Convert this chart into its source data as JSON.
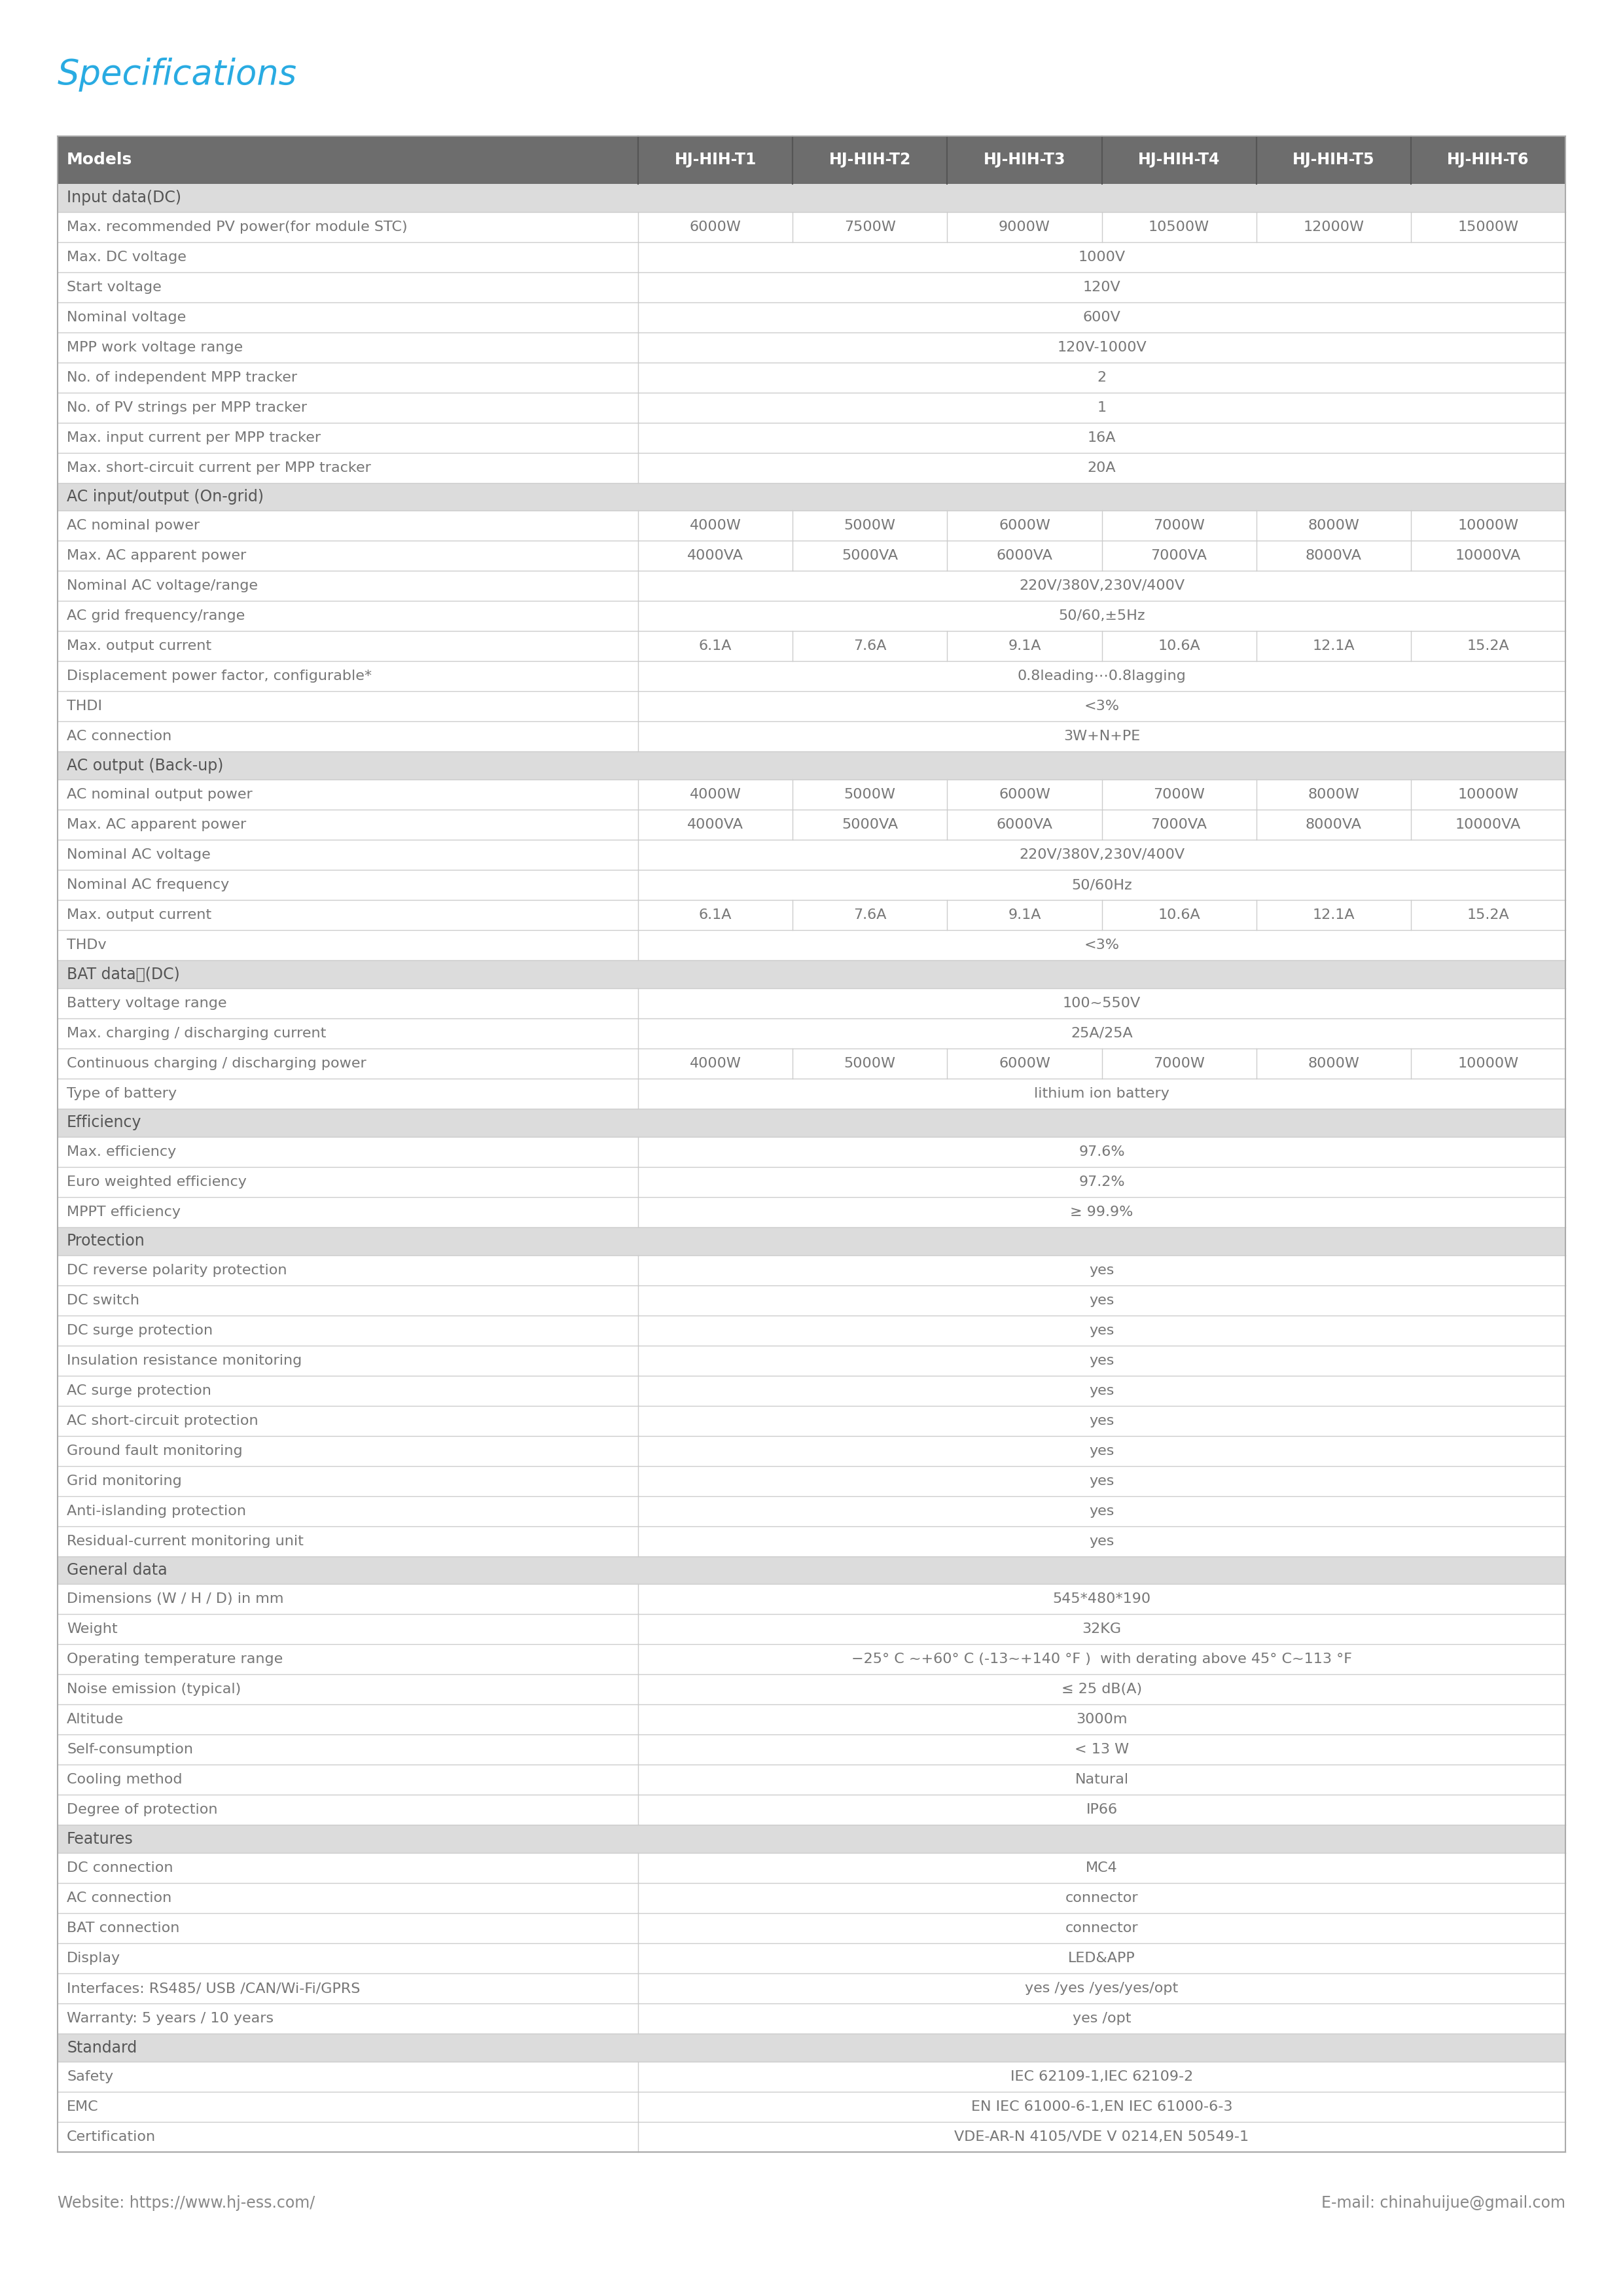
{
  "title": "Specifications",
  "title_color": "#29ABE2",
  "header_bg": "#6D6D6D",
  "header_text_color": "#FFFFFF",
  "section_bg": "#DCDCDC",
  "section_text_color": "#555555",
  "row_text_color": "#777777",
  "value_text_color": "#777777",
  "line_color": "#CCCCCC",
  "col_headers": [
    "Models",
    "HJ-HIH-T1",
    "HJ-HIH-T2",
    "HJ-HIH-T3",
    "HJ-HIH-T4",
    "HJ-HIH-T5",
    "HJ-HIH-T6"
  ],
  "rows": [
    {
      "type": "section",
      "label": "Input data(DC)"
    },
    {
      "type": "data",
      "label": "Max. recommended PV power(for module STC)",
      "values": [
        "6000W",
        "7500W",
        "9000W",
        "10500W",
        "12000W",
        "15000W"
      ],
      "span": false
    },
    {
      "type": "data",
      "label": "Max. DC voltage",
      "values": [
        "1000V",
        "",
        "",
        "",
        "",
        ""
      ],
      "span": true
    },
    {
      "type": "data",
      "label": "Start voltage",
      "values": [
        "120V",
        "",
        "",
        "",
        "",
        ""
      ],
      "span": true
    },
    {
      "type": "data",
      "label": "Nominal voltage",
      "values": [
        "600V",
        "",
        "",
        "",
        "",
        ""
      ],
      "span": true
    },
    {
      "type": "data",
      "label": "MPP work voltage range",
      "values": [
        "120V-1000V",
        "",
        "",
        "",
        "",
        ""
      ],
      "span": true
    },
    {
      "type": "data",
      "label": "No. of independent MPP tracker",
      "values": [
        "2",
        "",
        "",
        "",
        "",
        ""
      ],
      "span": true
    },
    {
      "type": "data",
      "label": "No. of PV strings per MPP tracker",
      "values": [
        "1",
        "",
        "",
        "",
        "",
        ""
      ],
      "span": true
    },
    {
      "type": "data",
      "label": "Max. input current per MPP tracker",
      "values": [
        "16A",
        "",
        "",
        "",
        "",
        ""
      ],
      "span": true
    },
    {
      "type": "data",
      "label": "Max. short-circuit current per MPP tracker",
      "values": [
        "20A",
        "",
        "",
        "",
        "",
        ""
      ],
      "span": true
    },
    {
      "type": "section",
      "label": "AC input/output (On-grid)"
    },
    {
      "type": "data",
      "label": "AC nominal power",
      "values": [
        "4000W",
        "5000W",
        "6000W",
        "7000W",
        "8000W",
        "10000W"
      ],
      "span": false
    },
    {
      "type": "data",
      "label": "Max. AC apparent power",
      "values": [
        "4000VA",
        "5000VA",
        "6000VA",
        "7000VA",
        "8000VA",
        "10000VA"
      ],
      "span": false
    },
    {
      "type": "data",
      "label": "Nominal AC voltage/range",
      "values": [
        "220V/380V,230V/400V",
        "",
        "",
        "",
        "",
        ""
      ],
      "span": true
    },
    {
      "type": "data",
      "label": "AC grid frequency/range",
      "values": [
        "50/60,±5Hz",
        "",
        "",
        "",
        "",
        ""
      ],
      "span": true
    },
    {
      "type": "data",
      "label": "Max. output current",
      "values": [
        "6.1A",
        "7.6A",
        "9.1A",
        "10.6A",
        "12.1A",
        "15.2A"
      ],
      "span": false
    },
    {
      "type": "data",
      "label": "Displacement power factor, configurable*",
      "values": [
        "0.8leading⋯0.8lagging",
        "",
        "",
        "",
        "",
        ""
      ],
      "span": true
    },
    {
      "type": "data",
      "label": "THDI",
      "values": [
        "<3%",
        "",
        "",
        "",
        "",
        ""
      ],
      "span": true
    },
    {
      "type": "data",
      "label": "AC connection",
      "values": [
        "3W+N+PE",
        "",
        "",
        "",
        "",
        ""
      ],
      "span": true
    },
    {
      "type": "section",
      "label": "AC output (Back-up)"
    },
    {
      "type": "data",
      "label": "AC nominal output power",
      "values": [
        "4000W",
        "5000W",
        "6000W",
        "7000W",
        "8000W",
        "10000W"
      ],
      "span": false
    },
    {
      "type": "data",
      "label": "Max. AC apparent power",
      "values": [
        "4000VA",
        "5000VA",
        "6000VA",
        "7000VA",
        "8000VA",
        "10000VA"
      ],
      "span": false
    },
    {
      "type": "data",
      "label": "Nominal AC voltage",
      "values": [
        "220V/380V,230V/400V",
        "",
        "",
        "",
        "",
        ""
      ],
      "span": true
    },
    {
      "type": "data",
      "label": "Nominal AC frequency",
      "values": [
        "50/60Hz",
        "",
        "",
        "",
        "",
        ""
      ],
      "span": true
    },
    {
      "type": "data",
      "label": "Max. output current",
      "values": [
        "6.1A",
        "7.6A",
        "9.1A",
        "10.6A",
        "12.1A",
        "15.2A"
      ],
      "span": false
    },
    {
      "type": "data",
      "label": "THDv",
      "values": [
        "<3%",
        "",
        "",
        "",
        "",
        ""
      ],
      "span": true
    },
    {
      "type": "section",
      "label": "BAT data　(DC)"
    },
    {
      "type": "data",
      "label": "Battery voltage range",
      "values": [
        "100~550V",
        "",
        "",
        "",
        "",
        ""
      ],
      "span": true
    },
    {
      "type": "data",
      "label": "Max. charging / discharging current",
      "values": [
        "25A/25A",
        "",
        "",
        "",
        "",
        ""
      ],
      "span": true
    },
    {
      "type": "data",
      "label": "Continuous charging / discharging power",
      "values": [
        "4000W",
        "5000W",
        "6000W",
        "7000W",
        "8000W",
        "10000W"
      ],
      "span": false
    },
    {
      "type": "data",
      "label": "Type of battery",
      "values": [
        "lithium ion battery",
        "",
        "",
        "",
        "",
        ""
      ],
      "span": true
    },
    {
      "type": "section",
      "label": "Efficiency"
    },
    {
      "type": "data",
      "label": "Max. efficiency",
      "values": [
        "97.6%",
        "",
        "",
        "",
        "",
        ""
      ],
      "span": true
    },
    {
      "type": "data",
      "label": "Euro weighted efficiency",
      "values": [
        "97.2%",
        "",
        "",
        "",
        "",
        ""
      ],
      "span": true
    },
    {
      "type": "data",
      "label": "MPPT efficiency",
      "values": [
        "≥ 99.9%",
        "",
        "",
        "",
        "",
        ""
      ],
      "span": true
    },
    {
      "type": "section",
      "label": "Protection"
    },
    {
      "type": "data",
      "label": "DC reverse polarity protection",
      "values": [
        "yes",
        "",
        "",
        "",
        "",
        ""
      ],
      "span": true
    },
    {
      "type": "data",
      "label": "DC switch",
      "values": [
        "yes",
        "",
        "",
        "",
        "",
        ""
      ],
      "span": true
    },
    {
      "type": "data",
      "label": "DC surge protection",
      "values": [
        "yes",
        "",
        "",
        "",
        "",
        ""
      ],
      "span": true
    },
    {
      "type": "data",
      "label": "Insulation resistance monitoring",
      "values": [
        "yes",
        "",
        "",
        "",
        "",
        ""
      ],
      "span": true
    },
    {
      "type": "data",
      "label": "AC surge protection",
      "values": [
        "yes",
        "",
        "",
        "",
        "",
        ""
      ],
      "span": true
    },
    {
      "type": "data",
      "label": "AC short-circuit protection",
      "values": [
        "yes",
        "",
        "",
        "",
        "",
        ""
      ],
      "span": true
    },
    {
      "type": "data",
      "label": "Ground fault monitoring",
      "values": [
        "yes",
        "",
        "",
        "",
        "",
        ""
      ],
      "span": true
    },
    {
      "type": "data",
      "label": "Grid monitoring",
      "values": [
        "yes",
        "",
        "",
        "",
        "",
        ""
      ],
      "span": true
    },
    {
      "type": "data",
      "label": "Anti-islanding protection",
      "values": [
        "yes",
        "",
        "",
        "",
        "",
        ""
      ],
      "span": true
    },
    {
      "type": "data",
      "label": "Residual-current monitoring unit",
      "values": [
        "yes",
        "",
        "",
        "",
        "",
        ""
      ],
      "span": true
    },
    {
      "type": "section",
      "label": "General data"
    },
    {
      "type": "data",
      "label": "Dimensions (W / H / D) in mm",
      "values": [
        "545*480*190",
        "",
        "",
        "",
        "",
        ""
      ],
      "span": true
    },
    {
      "type": "data",
      "label": "Weight",
      "values": [
        "32KG",
        "",
        "",
        "",
        "",
        ""
      ],
      "span": true
    },
    {
      "type": "data",
      "label": "Operating temperature range",
      "values": [
        "−25° C ~+60° C (-13~+140 °F )  with derating above 45° C~113 °F",
        "",
        "",
        "",
        "",
        ""
      ],
      "span": true
    },
    {
      "type": "data",
      "label": "Noise emission (typical)",
      "values": [
        "≤ 25 dB(A)",
        "",
        "",
        "",
        "",
        ""
      ],
      "span": true
    },
    {
      "type": "data",
      "label": "Altitude",
      "values": [
        "3000m",
        "",
        "",
        "",
        "",
        ""
      ],
      "span": true
    },
    {
      "type": "data",
      "label": "Self-consumption",
      "values": [
        "< 13 W",
        "",
        "",
        "",
        "",
        ""
      ],
      "span": true
    },
    {
      "type": "data",
      "label": "Cooling method",
      "values": [
        "Natural",
        "",
        "",
        "",
        "",
        ""
      ],
      "span": true
    },
    {
      "type": "data",
      "label": "Degree of protection",
      "values": [
        "IP66",
        "",
        "",
        "",
        "",
        ""
      ],
      "span": true
    },
    {
      "type": "section",
      "label": "Features"
    },
    {
      "type": "data",
      "label": "DC connection",
      "values": [
        "MC4",
        "",
        "",
        "",
        "",
        ""
      ],
      "span": true
    },
    {
      "type": "data",
      "label": "AC connection",
      "values": [
        "connector",
        "",
        "",
        "",
        "",
        ""
      ],
      "span": true
    },
    {
      "type": "data",
      "label": "BAT connection",
      "values": [
        "connector",
        "",
        "",
        "",
        "",
        ""
      ],
      "span": true
    },
    {
      "type": "data",
      "label": "Display",
      "values": [
        "LED&APP",
        "",
        "",
        "",
        "",
        ""
      ],
      "span": true
    },
    {
      "type": "data",
      "label": "Interfaces: RS485/ USB /CAN/Wi-Fi/GPRS",
      "values": [
        "yes /yes /yes/yes/opt",
        "",
        "",
        "",
        "",
        ""
      ],
      "span": true
    },
    {
      "type": "data",
      "label": "Warranty: 5 years / 10 years",
      "values": [
        "yes /opt",
        "",
        "",
        "",
        "",
        ""
      ],
      "span": true
    },
    {
      "type": "section",
      "label": "Standard"
    },
    {
      "type": "data",
      "label": "Safety",
      "values": [
        "IEC 62109-1,IEC 62109-2",
        "",
        "",
        "",
        "",
        ""
      ],
      "span": true
    },
    {
      "type": "data",
      "label": "EMC",
      "values": [
        "EN IEC 61000-6-1,EN IEC 61000-6-3",
        "",
        "",
        "",
        "",
        ""
      ],
      "span": true
    },
    {
      "type": "data",
      "label": "Certification",
      "values": [
        "VDE-AR-N 4105/VDE V 0214,EN 50549-1",
        "",
        "",
        "",
        "",
        ""
      ],
      "span": true
    }
  ],
  "footer_left": "Website: https://www.hj-ess.com/",
  "footer_right": "E-mail: chinahuijue@gmail.com"
}
